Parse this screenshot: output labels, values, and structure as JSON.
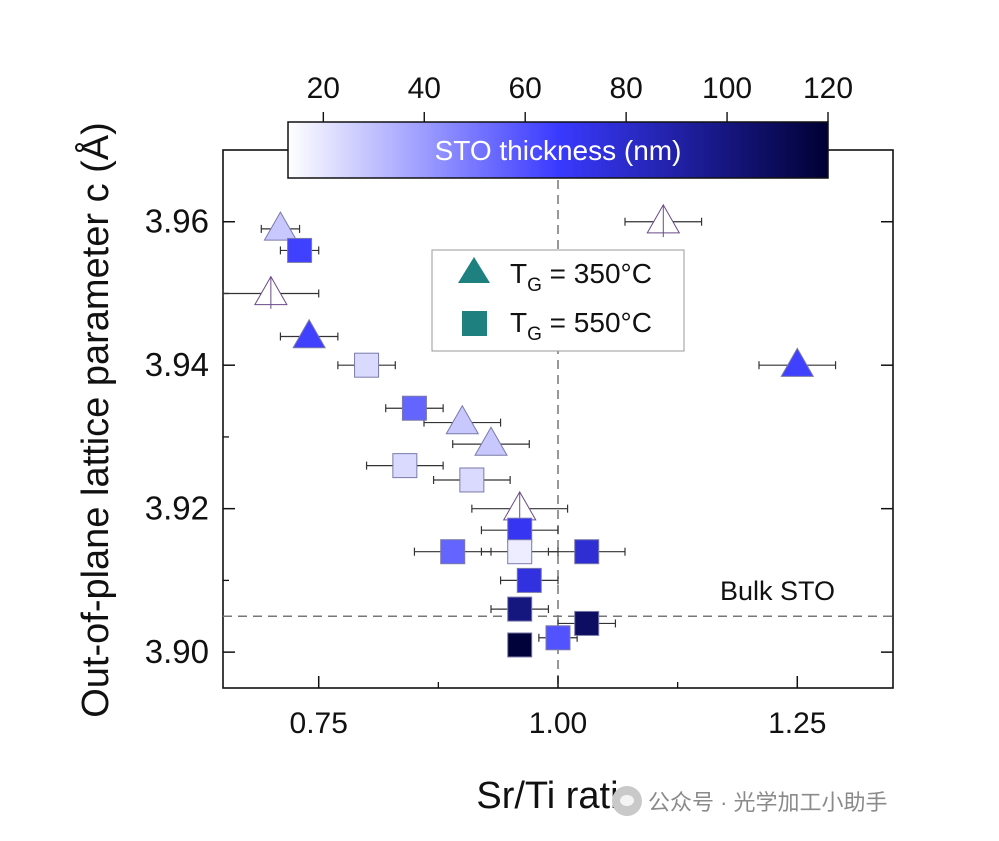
{
  "chart_data": {
    "type": "scatter",
    "xlabel": "Sr/Ti ratio",
    "ylabel": "Out-of-plane lattice parameter c (Å)",
    "xlim": [
      0.65,
      1.35
    ],
    "ylim": [
      3.895,
      3.97
    ],
    "x_ticks": [
      "0.75",
      "1.00",
      "1.25"
    ],
    "y_ticks": [
      "3.90",
      "3.92",
      "3.94",
      "3.96"
    ],
    "colorbar": {
      "label": "STO thickness (nm)",
      "range": [
        13,
        120
      ],
      "ticks": [
        "20",
        "40",
        "60",
        "80",
        "100",
        "120"
      ],
      "colors": [
        "#ffffff",
        "#3a3aff",
        "#000033"
      ]
    },
    "legend": {
      "position": "top-center",
      "entries": [
        {
          "marker": "triangle",
          "label_main": "T",
          "label_sub": "G",
          "label_rest": " = 350°C",
          "color": "#1f8080"
        },
        {
          "marker": "square",
          "label_main": "T",
          "label_sub": "G",
          "label_rest": " = 550°C",
          "color": "#1f8080"
        }
      ]
    },
    "reference_lines": [
      {
        "orientation": "vertical",
        "value": 1.0
      },
      {
        "orientation": "horizontal",
        "value": 3.905,
        "label": "Bulk STO"
      }
    ],
    "series": [
      {
        "marker": "triangle",
        "points": [
          {
            "x": 0.71,
            "y": 3.959,
            "thickness": 28,
            "xerr": 0.02
          },
          {
            "x": 0.7,
            "y": 3.95,
            "thickness": 13,
            "xerr": 0.05,
            "hollow": true
          },
          {
            "x": 0.74,
            "y": 3.944,
            "thickness": 65,
            "xerr": 0.03
          },
          {
            "x": 0.9,
            "y": 3.932,
            "thickness": 28,
            "xerr": 0.04
          },
          {
            "x": 0.93,
            "y": 3.929,
            "thickness": 28,
            "xerr": 0.04
          },
          {
            "x": 0.96,
            "y": 3.92,
            "thickness": 13,
            "xerr": 0.05,
            "hollow": true
          },
          {
            "x": 1.11,
            "y": 3.96,
            "thickness": 13,
            "xerr": 0.04,
            "hollow": true
          },
          {
            "x": 1.25,
            "y": 3.94,
            "thickness": 65,
            "xerr": 0.04
          }
        ]
      },
      {
        "marker": "square",
        "points": [
          {
            "x": 0.73,
            "y": 3.956,
            "thickness": 65,
            "xerr": 0.02
          },
          {
            "x": 0.8,
            "y": 3.94,
            "thickness": 23,
            "xerr": 0.03
          },
          {
            "x": 0.85,
            "y": 3.934,
            "thickness": 55,
            "xerr": 0.03
          },
          {
            "x": 0.84,
            "y": 3.926,
            "thickness": 23,
            "xerr": 0.04
          },
          {
            "x": 0.91,
            "y": 3.924,
            "thickness": 23,
            "xerr": 0.04
          },
          {
            "x": 0.96,
            "y": 3.917,
            "thickness": 70,
            "xerr": 0.04
          },
          {
            "x": 0.89,
            "y": 3.914,
            "thickness": 55,
            "xerr": 0.04
          },
          {
            "x": 0.96,
            "y": 3.914,
            "thickness": 18,
            "xerr": 0.04
          },
          {
            "x": 1.03,
            "y": 3.914,
            "thickness": 78,
            "xerr": 0.04
          },
          {
            "x": 0.97,
            "y": 3.91,
            "thickness": 75,
            "xerr": 0.03
          },
          {
            "x": 0.96,
            "y": 3.906,
            "thickness": 100,
            "xerr": 0.03
          },
          {
            "x": 1.03,
            "y": 3.904,
            "thickness": 108,
            "xerr": 0.03
          },
          {
            "x": 0.96,
            "y": 3.901,
            "thickness": 118,
            "xerr": 0.0
          },
          {
            "x": 1.0,
            "y": 3.902,
            "thickness": 60,
            "xerr": 0.02
          }
        ]
      }
    ]
  },
  "watermark": {
    "text": "公众号 · 光学加工小助手"
  }
}
